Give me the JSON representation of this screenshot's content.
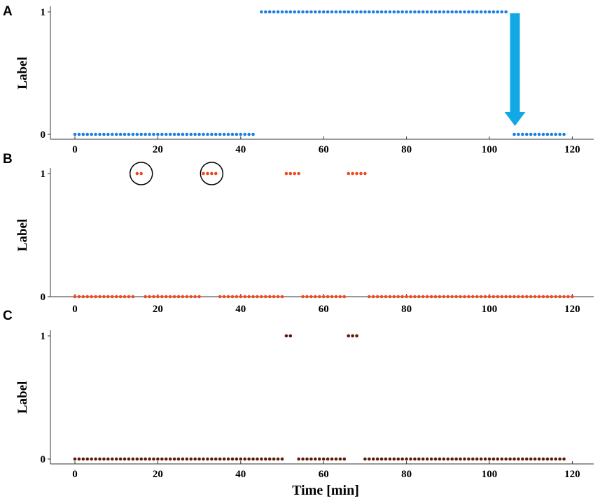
{
  "chart_data": [
    {
      "panel_label": "A",
      "type": "scatter",
      "ylabel": "Label",
      "xlabel": "",
      "xlim": [
        0,
        120
      ],
      "ylim": [
        0,
        1
      ],
      "x_ticks": [
        0,
        20,
        40,
        60,
        80,
        100,
        120
      ],
      "y_ticks": [
        0,
        1
      ],
      "grid": false,
      "color": "#1f7ee0",
      "sampling_step_min": 1,
      "segments": [
        {
          "y": 0,
          "x_start": 0,
          "x_end": 43
        },
        {
          "y": 1,
          "x_start": 45,
          "x_end": 104
        },
        {
          "y": 0,
          "x_start": 106,
          "x_end": 118
        }
      ],
      "annotations": [
        {
          "type": "arrow",
          "direction": "down",
          "x": 106,
          "y_from": 1,
          "y_to": 0,
          "color": "#12a8e6"
        }
      ]
    },
    {
      "panel_label": "B",
      "type": "scatter",
      "ylabel": "Label",
      "xlabel": "",
      "xlim": [
        0,
        120
      ],
      "ylim": [
        0,
        1
      ],
      "x_ticks": [
        0,
        20,
        40,
        60,
        80,
        100,
        120
      ],
      "y_ticks": [
        0,
        1
      ],
      "grid": false,
      "color": "#f04a22",
      "sampling_step_min": 1,
      "segments": [
        {
          "y": 0,
          "x_start": 0,
          "x_end": 14
        },
        {
          "y": 1,
          "x_start": 15,
          "x_end": 16
        },
        {
          "y": 0,
          "x_start": 17,
          "x_end": 30
        },
        {
          "y": 1,
          "x_start": 31,
          "x_end": 34
        },
        {
          "y": 0,
          "x_start": 35,
          "x_end": 50
        },
        {
          "y": 1,
          "x_start": 51,
          "x_end": 54
        },
        {
          "y": 0,
          "x_start": 55,
          "x_end": 65
        },
        {
          "y": 1,
          "x_start": 66,
          "x_end": 70
        },
        {
          "y": 0,
          "x_start": 71,
          "x_end": 120
        }
      ],
      "annotations": [
        {
          "type": "circle",
          "x": 16,
          "y": 1,
          "color": "#000000"
        },
        {
          "type": "circle",
          "x": 33,
          "y": 1,
          "color": "#000000"
        }
      ]
    },
    {
      "panel_label": "C",
      "type": "scatter",
      "ylabel": "Label",
      "xlabel": "Time [min]",
      "xlim": [
        0,
        120
      ],
      "ylim": [
        0,
        1
      ],
      "x_ticks": [
        0,
        20,
        40,
        60,
        80,
        100,
        120
      ],
      "y_ticks": [
        0,
        1
      ],
      "grid": false,
      "color": "#5a1a08",
      "sampling_step_min": 1,
      "segments": [
        {
          "y": 0,
          "x_start": 0,
          "x_end": 50
        },
        {
          "y": 1,
          "x_start": 51,
          "x_end": 52
        },
        {
          "y": 0,
          "x_start": 54,
          "x_end": 65
        },
        {
          "y": 1,
          "x_start": 66,
          "x_end": 68
        },
        {
          "y": 0,
          "x_start": 70,
          "x_end": 118
        }
      ],
      "annotations": []
    }
  ]
}
